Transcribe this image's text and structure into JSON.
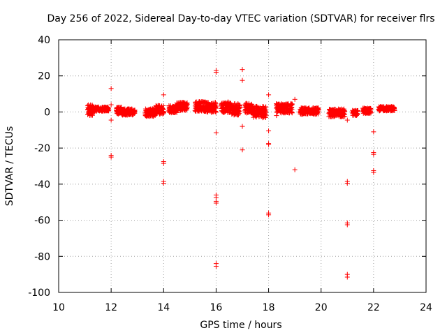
{
  "chart_data": {
    "type": "scatter",
    "title": "Day 256 of 2022, Sidereal Day-to-day VTEC variation (SDTVAR) for receiver flrs",
    "xlabel": "GPS time / hours",
    "ylabel": "SDTVAR / TECUs",
    "xlim": [
      10,
      24
    ],
    "ylim": [
      -100,
      40
    ],
    "xticks": [
      10,
      12,
      14,
      16,
      18,
      20,
      22,
      24
    ],
    "yticks": [
      -100,
      -80,
      -60,
      -40,
      -20,
      0,
      20,
      40
    ],
    "grid": true,
    "marker": "plus",
    "color": "#ff0000",
    "series": [
      {
        "name": "SDTVAR",
        "bands": [
          {
            "x_start": 11.1,
            "x_end": 11.3,
            "y_center": 1.0,
            "y_spread": 3.0
          },
          {
            "x_start": 11.3,
            "x_end": 11.9,
            "y_center": 1.6,
            "y_spread": 1.2
          },
          {
            "x_start": 12.2,
            "x_end": 12.4,
            "y_center": 0.8,
            "y_spread": 2.0
          },
          {
            "x_start": 12.4,
            "x_end": 12.9,
            "y_center": 0.0,
            "y_spread": 1.8
          },
          {
            "x_start": 13.3,
            "x_end": 13.7,
            "y_center": -0.3,
            "y_spread": 2.2
          },
          {
            "x_start": 13.7,
            "x_end": 14.0,
            "y_center": 1.2,
            "y_spread": 2.4
          },
          {
            "x_start": 14.2,
            "x_end": 14.5,
            "y_center": 1.5,
            "y_spread": 2.0
          },
          {
            "x_start": 14.5,
            "x_end": 14.9,
            "y_center": 3.0,
            "y_spread": 2.4
          },
          {
            "x_start": 15.2,
            "x_end": 15.6,
            "y_center": 3.0,
            "y_spread": 2.8
          },
          {
            "x_start": 15.6,
            "x_end": 16.0,
            "y_center": 2.5,
            "y_spread": 2.8
          },
          {
            "x_start": 16.2,
            "x_end": 16.6,
            "y_center": 2.6,
            "y_spread": 3.0
          },
          {
            "x_start": 16.6,
            "x_end": 16.9,
            "y_center": 1.5,
            "y_spread": 3.2
          },
          {
            "x_start": 17.1,
            "x_end": 17.4,
            "y_center": 2.0,
            "y_spread": 2.8
          },
          {
            "x_start": 17.4,
            "x_end": 17.9,
            "y_center": 0.0,
            "y_spread": 3.2
          },
          {
            "x_start": 18.3,
            "x_end": 18.9,
            "y_center": 2.0,
            "y_spread": 2.6
          },
          {
            "x_start": 19.2,
            "x_end": 19.9,
            "y_center": 0.5,
            "y_spread": 1.8
          },
          {
            "x_start": 20.3,
            "x_end": 20.9,
            "y_center": -0.5,
            "y_spread": 2.2
          },
          {
            "x_start": 21.2,
            "x_end": 21.4,
            "y_center": -0.5,
            "y_spread": 1.4
          },
          {
            "x_start": 21.6,
            "x_end": 21.9,
            "y_center": 0.6,
            "y_spread": 1.6
          },
          {
            "x_start": 22.2,
            "x_end": 22.8,
            "y_center": 1.8,
            "y_spread": 1.2
          }
        ],
        "outliers": [
          {
            "x": 12.0,
            "y": 13.0
          },
          {
            "x": 12.0,
            "y": 4.0
          },
          {
            "x": 12.0,
            "y": -4.5
          },
          {
            "x": 12.0,
            "y": -24.0
          },
          {
            "x": 12.0,
            "y": -25.0
          },
          {
            "x": 14.0,
            "y": 9.5
          },
          {
            "x": 14.0,
            "y": -27.5
          },
          {
            "x": 14.0,
            "y": -28.5
          },
          {
            "x": 14.0,
            "y": -38.5
          },
          {
            "x": 14.0,
            "y": -39.5
          },
          {
            "x": 16.0,
            "y": 23.0
          },
          {
            "x": 16.0,
            "y": 22.0
          },
          {
            "x": 16.0,
            "y": -11.5
          },
          {
            "x": 16.0,
            "y": -46.0
          },
          {
            "x": 16.0,
            "y": -47.5
          },
          {
            "x": 16.0,
            "y": -49.5
          },
          {
            "x": 16.0,
            "y": -50.5
          },
          {
            "x": 16.0,
            "y": -84.0
          },
          {
            "x": 16.0,
            "y": -85.5
          },
          {
            "x": 17.0,
            "y": 23.5
          },
          {
            "x": 17.0,
            "y": 17.5
          },
          {
            "x": 17.0,
            "y": -8.0
          },
          {
            "x": 17.0,
            "y": -21.0
          },
          {
            "x": 18.0,
            "y": 9.5
          },
          {
            "x": 18.0,
            "y": -10.5
          },
          {
            "x": 18.0,
            "y": -17.5
          },
          {
            "x": 18.0,
            "y": -18.0
          },
          {
            "x": 18.0,
            "y": -56.0
          },
          {
            "x": 18.0,
            "y": -57.0
          },
          {
            "x": 18.3,
            "y": -2.0
          },
          {
            "x": 19.0,
            "y": 7.0
          },
          {
            "x": 19.0,
            "y": -32.0
          },
          {
            "x": 21.0,
            "y": -4.5
          },
          {
            "x": 21.0,
            "y": -38.5
          },
          {
            "x": 21.0,
            "y": -39.5
          },
          {
            "x": 21.0,
            "y": -61.5
          },
          {
            "x": 21.0,
            "y": -62.5
          },
          {
            "x": 21.0,
            "y": -90.0
          },
          {
            "x": 21.0,
            "y": -91.5
          },
          {
            "x": 22.0,
            "y": -11.0
          },
          {
            "x": 22.0,
            "y": -22.5
          },
          {
            "x": 22.0,
            "y": -23.5
          },
          {
            "x": 22.0,
            "y": -32.5
          },
          {
            "x": 22.0,
            "y": -33.5
          }
        ]
      }
    ]
  }
}
